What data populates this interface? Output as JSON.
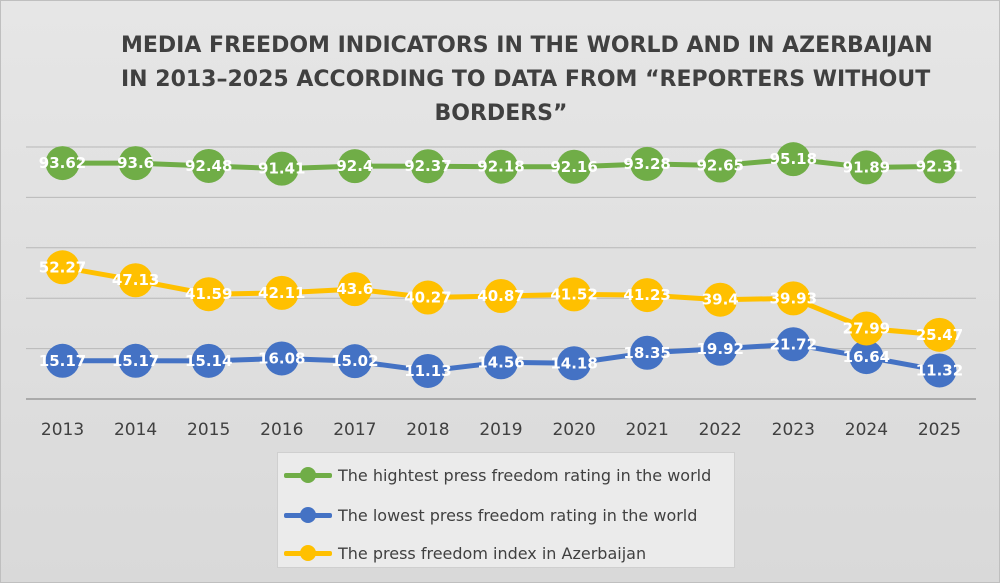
{
  "chart_data": {
    "type": "line",
    "title_lines": [
      "MEDIA FREEDOM INDICATORS IN THE WORLD AND IN AZERBAIJAN",
      "IN 2013–2025 ACCORDING TO DATA FROM “REPORTERS WITHOUT",
      "BORDERS”"
    ],
    "categories": [
      "2013",
      "2014",
      "2015",
      "2016",
      "2017",
      "2018",
      "2019",
      "2020",
      "2021",
      "2022",
      "2023",
      "2024",
      "2025"
    ],
    "series": [
      {
        "name": "The hightest press freedom rating in the world",
        "color": "#70ad47",
        "values": [
          93.62,
          93.6,
          92.48,
          91.41,
          92.4,
          92.37,
          92.18,
          92.16,
          93.28,
          92.65,
          95.18,
          91.89,
          92.31
        ],
        "labels": [
          "93.62",
          "93.6",
          "92.48",
          "91.41",
          "92.4",
          "92.37",
          "92.18",
          "92.16",
          "93.28",
          "92.65",
          "95.18",
          "91.89",
          "92.31"
        ]
      },
      {
        "name": "The lowest press freedom rating in the world",
        "color": "#4472c4",
        "values": [
          15.17,
          15.17,
          15.14,
          16.08,
          15.02,
          11.13,
          14.56,
          14.18,
          18.35,
          19.92,
          21.72,
          16.64,
          11.32
        ],
        "labels": [
          "15.17",
          "15.17",
          "15.14",
          "16.08",
          "15.02",
          "11.13",
          "14.56",
          "14.18",
          "18.35",
          "19.92",
          "21.72",
          "16.64",
          "11.32"
        ]
      },
      {
        "name": "The press freedom index in Azerbaijan",
        "color": "#ffc000",
        "values": [
          52.27,
          47.13,
          41.59,
          42.11,
          43.6,
          40.27,
          40.87,
          41.52,
          41.23,
          39.4,
          39.93,
          27.99,
          25.47
        ],
        "labels": [
          "52.27",
          "47.13",
          "41.59",
          "42.11",
          "43.6",
          "40.27",
          "40.87",
          "41.52",
          "41.23",
          "39.4",
          "39.93",
          "27.99",
          "25.47"
        ]
      }
    ],
    "ylim": [
      0,
      100
    ],
    "grid": true,
    "legend_position": "bottom"
  }
}
